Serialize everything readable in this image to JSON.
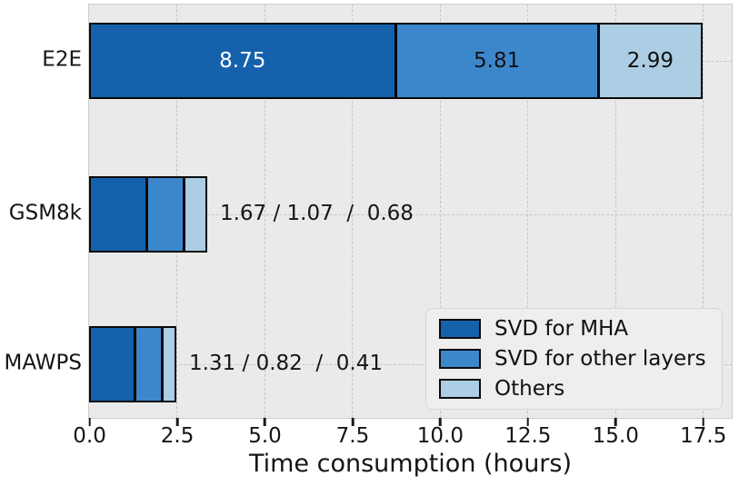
{
  "style": {
    "figure_bg": "#ffffff",
    "plot_bg": "#eaeaea",
    "grid_color": "#c4c4c4",
    "spine_color": "#cdcdcd",
    "bar_edge_color": "#0a0a0a",
    "text_color": "#151515",
    "inside_label_colors": [
      "#ffffff",
      "#111111",
      "#111111"
    ]
  },
  "chart_data": {
    "type": "bar",
    "orientation": "horizontal",
    "stacked": true,
    "title": "",
    "xlabel": "Time consumption (hours)",
    "ylabel": "",
    "categories": [
      "E2E",
      "GSM8k",
      "MAWPS"
    ],
    "series": [
      {
        "name": "SVD for MHA",
        "color": "#1561ab",
        "values": [
          8.75,
          1.67,
          1.31
        ]
      },
      {
        "name": "SVD for other layers",
        "color": "#3c87cc",
        "values": [
          5.81,
          1.07,
          0.82
        ]
      },
      {
        "name": "Others",
        "color": "#abcee4",
        "values": [
          2.99,
          0.68,
          0.41
        ]
      }
    ],
    "totals": [
      17.55,
      3.42,
      2.54
    ],
    "inside_labels_row": "E2E",
    "inside_labels": [
      "8.75",
      "5.81",
      "2.99"
    ],
    "row_annotations": [
      "",
      "1.67 / 1.07  /  0.68",
      "1.31 / 0.82  /  0.41"
    ],
    "x_tick_values": [
      0,
      2.5,
      5,
      7.5,
      10,
      12.5,
      15,
      17.5
    ],
    "x_tick_labels": [
      "0.0",
      "2.5",
      "5.0",
      "7.5",
      "10.0",
      "12.5",
      "15.0",
      "17.5"
    ],
    "xlim": [
      0,
      18.3
    ],
    "grid": {
      "x": true,
      "y": true,
      "line_style": "dashed"
    },
    "legend": {
      "position": "lower right",
      "entries": [
        "SVD for MHA",
        "SVD for other layers",
        "Others"
      ]
    }
  }
}
